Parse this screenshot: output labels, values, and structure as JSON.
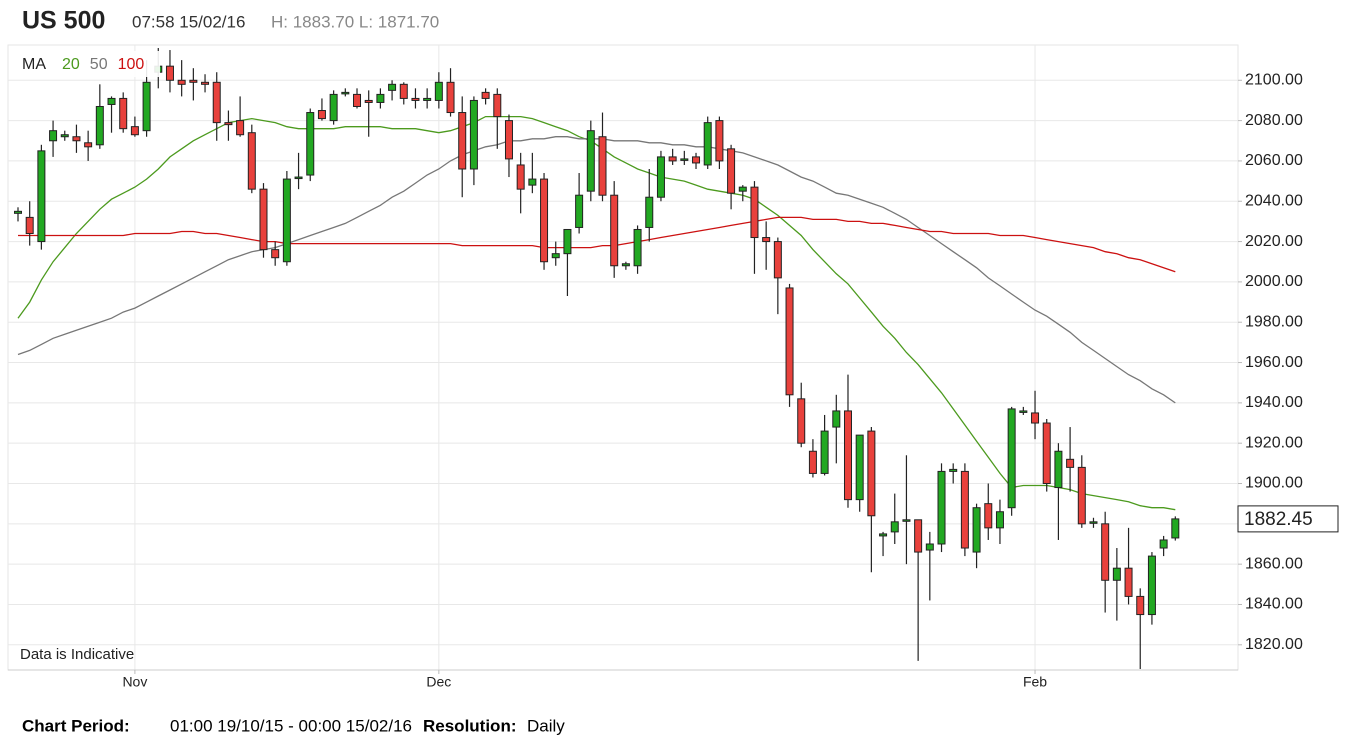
{
  "header": {
    "symbol": "US 500",
    "time": "07:58 15/02/16",
    "high_low": "H: 1883.70 L: 1871.70"
  },
  "chart_data": {
    "type": "candlestick",
    "annotation": "Data is Indicative",
    "legend_title": "MA",
    "grid": true,
    "up_color": "#22a822",
    "down_color": "#e8413c",
    "ylim": [
      1807.5,
      2117.5
    ],
    "yticks": [
      {
        "value": 1820,
        "label": "1820.00"
      },
      {
        "value": 1840,
        "label": "1840.00"
      },
      {
        "value": 1860,
        "label": "1860.00"
      },
      {
        "value": 1880,
        "label": "1880.00"
      },
      {
        "value": 1900,
        "label": "1900.00"
      },
      {
        "value": 1920,
        "label": "1920.00"
      },
      {
        "value": 1940,
        "label": "1940.00"
      },
      {
        "value": 1960,
        "label": "1960.00"
      },
      {
        "value": 1980,
        "label": "1980.00"
      },
      {
        "value": 2000,
        "label": "2000.00"
      },
      {
        "value": 2020,
        "label": "2020.00"
      },
      {
        "value": 2040,
        "label": "2040.00"
      },
      {
        "value": 2060,
        "label": "2060.00"
      },
      {
        "value": 2080,
        "label": "2080.00"
      },
      {
        "value": 2100,
        "label": "2100.00"
      }
    ],
    "categories": [
      null,
      null,
      null,
      null,
      null,
      null,
      null,
      null,
      null,
      null,
      "Nov",
      null,
      null,
      null,
      null,
      null,
      null,
      null,
      null,
      null,
      null,
      null,
      null,
      null,
      null,
      null,
      null,
      null,
      null,
      null,
      null,
      null,
      null,
      null,
      null,
      null,
      "Dec",
      null,
      null,
      null,
      null,
      null,
      null,
      null,
      null,
      null,
      null,
      null,
      null,
      null,
      null,
      null,
      null,
      null,
      null,
      null,
      null,
      null,
      null,
      null,
      null,
      null,
      null,
      null,
      null,
      null,
      null,
      null,
      null,
      null,
      null,
      null,
      null,
      null,
      null,
      null,
      null,
      null,
      null,
      null,
      null,
      null,
      null,
      null,
      null,
      null,
      null,
      "Feb",
      null,
      null,
      null,
      null,
      null,
      null,
      null,
      null,
      null,
      null,
      null,
      null
    ],
    "open": [
      2034,
      2032,
      2020,
      2070,
      2072,
      2072,
      2069,
      2068,
      2088,
      2091,
      2077,
      2075,
      2104,
      2107,
      2100,
      2100,
      2099,
      2099,
      2079,
      2080,
      2074,
      2046,
      2016,
      2010,
      2052,
      2053,
      2085,
      2080,
      2094,
      2093,
      2090,
      2089,
      2095,
      2098,
      2091,
      2090,
      2090,
      2099,
      2084,
      2056,
      2094,
      2093,
      2080,
      2058,
      2048,
      2051,
      2012,
      2014,
      2027,
      2045,
      2072,
      2043,
      2008,
      2008,
      2027,
      2042,
      2062,
      2061,
      2062,
      2058,
      2080,
      2066,
      2045,
      2047,
      2022,
      2020,
      1997,
      1942,
      1916,
      1905,
      1928,
      1936,
      1892,
      1926,
      1874,
      1876,
      1882,
      1882,
      1867,
      1870,
      1906,
      1906,
      1866,
      1890,
      1878,
      1888,
      1936,
      1935,
      1930,
      1898,
      1912,
      1908,
      1881,
      1880,
      1852,
      1858,
      1844,
      1835,
      1868,
      1873
    ],
    "high": [
      2037,
      2040,
      2068,
      2080,
      2075,
      2078,
      2075,
      2098,
      2092,
      2094,
      2082,
      2110,
      2116,
      2115,
      2110,
      2106,
      2103,
      2104,
      2085,
      2092,
      2078,
      2049,
      2020,
      2055,
      2064,
      2086,
      2091,
      2095,
      2096,
      2096,
      2095,
      2096,
      2100,
      2099,
      2096,
      2096,
      2104,
      2106,
      2092,
      2092,
      2096,
      2096,
      2083,
      2064,
      2064,
      2054,
      2020,
      2026,
      2054,
      2080,
      2084,
      2050,
      2010,
      2028,
      2056,
      2065,
      2066,
      2065,
      2064,
      2082,
      2082,
      2068,
      2048,
      2050,
      2030,
      2022,
      1999,
      1950,
      1922,
      1934,
      1944,
      1954,
      1924,
      1928,
      1876,
      1895,
      1914,
      1882,
      1876,
      1910,
      1910,
      1910,
      1890,
      1900,
      1892,
      1938,
      1938,
      1946,
      1932,
      1920,
      1928,
      1914,
      1883,
      1886,
      1868,
      1878,
      1848,
      1866,
      1874,
      1883.7
    ],
    "low": [
      2030,
      2018,
      2016,
      2062,
      2070,
      2064,
      2060,
      2066,
      2074,
      2074,
      2072,
      2072,
      2096,
      2094,
      2092,
      2090,
      2094,
      2070,
      2070,
      2072,
      2044,
      2012,
      2008,
      2008,
      2046,
      2050,
      2080,
      2078,
      2092,
      2086,
      2072,
      2086,
      2090,
      2088,
      2086,
      2086,
      2086,
      2082,
      2042,
      2048,
      2088,
      2066,
      2052,
      2034,
      2044,
      2006,
      2008,
      1993,
      2024,
      2040,
      2040,
      2002,
      2006,
      2004,
      2020,
      2040,
      2058,
      2058,
      2056,
      2056,
      2056,
      2036,
      2040,
      2004,
      2006,
      1984,
      1938,
      1918,
      1903,
      1904,
      1910,
      1888,
      1886,
      1856,
      1864,
      1870,
      1860,
      1812,
      1842,
      1866,
      1900,
      1864,
      1858,
      1872,
      1870,
      1884,
      1934,
      1922,
      1896,
      1872,
      1896,
      1878,
      1878,
      1836,
      1832,
      1840,
      1808,
      1830,
      1864,
      1871.7
    ],
    "close": [
      2035,
      2024,
      2065,
      2075,
      2073,
      2070,
      2067,
      2087,
      2091,
      2076,
      2073,
      2099,
      2107,
      2100,
      2098,
      2099,
      2098,
      2079,
      2078,
      2073,
      2046,
      2016,
      2012,
      2051,
      2052,
      2084,
      2081,
      2093,
      2094,
      2087,
      2089,
      2093,
      2098,
      2091,
      2090,
      2091,
      2099,
      2084,
      2056,
      2090,
      2091,
      2082,
      2061,
      2046,
      2051,
      2010,
      2014,
      2026,
      2043,
      2075,
      2043,
      2008,
      2009,
      2026,
      2042,
      2062,
      2060,
      2061,
      2059,
      2079,
      2060,
      2044,
      2047,
      2022,
      2020,
      2002,
      1944,
      1920,
      1905,
      1926,
      1936,
      1892,
      1924,
      1884,
      1875,
      1881,
      1882,
      1866,
      1870,
      1906,
      1907,
      1868,
      1888,
      1878,
      1886,
      1937,
      1936,
      1930,
      1900,
      1916,
      1908,
      1880,
      1881,
      1852,
      1858,
      1844,
      1835,
      1864,
      1872,
      1882.45
    ],
    "overlays": [
      {
        "name": "20",
        "color": "#4c9a1e",
        "values": [
          1982,
          1990,
          2001,
          2010,
          2017,
          2024,
          2030,
          2036,
          2041,
          2044,
          2047,
          2051,
          2056,
          2062,
          2066,
          2070,
          2073,
          2076,
          2079,
          2080,
          2081,
          2080,
          2079,
          2077,
          2076,
          2076,
          2076,
          2076,
          2077,
          2077,
          2077,
          2077,
          2076,
          2076,
          2076,
          2075,
          2074,
          2075,
          2077,
          2079,
          2082,
          2082,
          2082,
          2082,
          2081,
          2079,
          2077,
          2075,
          2072,
          2070,
          2066,
          2062,
          2059,
          2056,
          2054,
          2052,
          2051,
          2050,
          2048,
          2046,
          2045,
          2044,
          2043,
          2041,
          2037,
          2033,
          2028,
          2023,
          2016,
          2010,
          2004,
          1999,
          1992,
          1985,
          1978,
          1972,
          1965,
          1959,
          1952,
          1945,
          1937,
          1929,
          1921,
          1913,
          1905,
          1898,
          1899,
          1899,
          1899,
          1898,
          1897,
          1895,
          1894,
          1893,
          1892,
          1891,
          1889,
          1888,
          1888,
          1887
        ]
      },
      {
        "name": "50",
        "color": "#777777",
        "values": [
          1964,
          1966,
          1969,
          1972,
          1974,
          1976,
          1978,
          1980,
          1982,
          1985,
          1987,
          1990,
          1993,
          1996,
          1999,
          2002,
          2005,
          2008,
          2011,
          2013,
          2015,
          2016,
          2017,
          2019,
          2021,
          2023,
          2025,
          2027,
          2029,
          2032,
          2035,
          2038,
          2042,
          2045,
          2049,
          2053,
          2056,
          2060,
          2063,
          2065,
          2067,
          2068,
          2070,
          2070,
          2071,
          2071,
          2072,
          2072,
          2071,
          2071,
          2071,
          2070,
          2070,
          2070,
          2069,
          2069,
          2068,
          2068,
          2067,
          2067,
          2066,
          2065,
          2064,
          2062,
          2060,
          2058,
          2055,
          2052,
          2050,
          2047,
          2044,
          2043,
          2041,
          2039,
          2037,
          2034,
          2031,
          2027,
          2023,
          2019,
          2015,
          2011,
          2007,
          2002,
          1998,
          1994,
          1990,
          1986,
          1983,
          1979,
          1975,
          1970,
          1966,
          1962,
          1958,
          1954,
          1951,
          1947,
          1944,
          1940
        ]
      },
      {
        "name": "100",
        "color": "#cc1111",
        "values": [
          2023,
          2023,
          2023,
          2023,
          2023,
          2023,
          2023,
          2023,
          2023,
          2023,
          2024,
          2024,
          2024,
          2024,
          2025,
          2025,
          2024,
          2024,
          2023,
          2022,
          2021,
          2020,
          2020,
          2019,
          2019,
          2019,
          2019,
          2019,
          2019,
          2019,
          2019,
          2019,
          2019,
          2019,
          2019,
          2019,
          2019,
          2019,
          2018,
          2018,
          2018,
          2018,
          2018,
          2018,
          2018,
          2017,
          2017,
          2017,
          2017,
          2017,
          2018,
          2018,
          2019,
          2020,
          2021,
          2022,
          2023,
          2024,
          2025,
          2026,
          2027,
          2028,
          2029,
          2030,
          2031,
          2032,
          2032,
          2032,
          2031,
          2031,
          2031,
          2030,
          2030,
          2029,
          2029,
          2028,
          2027,
          2026,
          2025,
          2025,
          2024,
          2024,
          2024,
          2024,
          2023,
          2023,
          2023,
          2022,
          2021,
          2020,
          2019,
          2018,
          2017,
          2015,
          2014,
          2012,
          2011,
          2009,
          2007,
          2005
        ]
      }
    ]
  },
  "footer": {
    "period_label": "Chart Period:",
    "period": "01:00 19/10/15 - 00:00 15/02/16",
    "resolution_label": "Resolution:",
    "resolution": "Daily"
  }
}
